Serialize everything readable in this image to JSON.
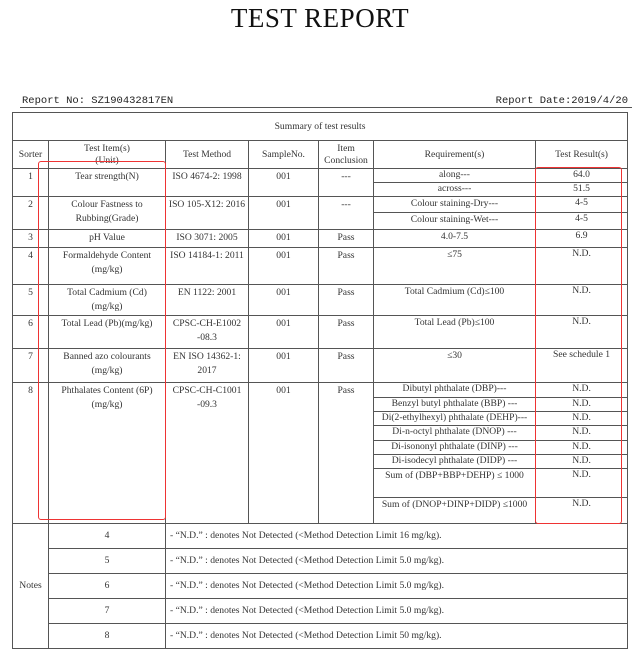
{
  "title": "TEST REPORT",
  "report_no": "Report No: SZ190432817EN",
  "report_date": "Report Date:2019/4/20",
  "summary_title": "Summary of test results",
  "headers": [
    "Sorter",
    "Test Item(s)\n(Unit)",
    "Test Method",
    "SampleNo.",
    "Item Conclusion",
    "Requirement(s)",
    "Test Result(s)"
  ],
  "rows": [
    {
      "sorter": "1",
      "item": "Tear strength(N)",
      "method": "ISO 4674-2: 1998",
      "sample": "001",
      "conclusion": "---",
      "sub": [
        {
          "req": "along---",
          "result": "64.0"
        },
        {
          "req": "across---",
          "result": "51.5"
        }
      ]
    },
    {
      "sorter": "2",
      "item": "Colour Fastness to Rubbing(Grade)",
      "method": "ISO 105-X12: 2016",
      "sample": "001",
      "conclusion": "---",
      "sub": [
        {
          "req": "Colour staining-Dry---",
          "result": "4-5"
        },
        {
          "req": "Colour staining-Wet---",
          "result": "4-5"
        }
      ]
    },
    {
      "sorter": "3",
      "item": "pH Value",
      "method": "ISO 3071:  2005",
      "sample": "001",
      "conclusion": "Pass",
      "sub": [
        {
          "req": "4.0-7.5",
          "result": "6.9"
        }
      ]
    },
    {
      "sorter": "4",
      "item": "Formaldehyde Content (mg/kg)",
      "method": "ISO 14184-1: 2011",
      "sample": "001",
      "conclusion": "Pass",
      "sub": [
        {
          "req": "≤75",
          "result": "N.D."
        }
      ]
    },
    {
      "sorter": "5",
      "item": "Total Cadmium (Cd) (mg/kg)",
      "method": "EN 1122:  2001",
      "sample": "001",
      "conclusion": "Pass",
      "sub": [
        {
          "req": "Total Cadmium (Cd)≤100",
          "result": "N.D."
        }
      ]
    },
    {
      "sorter": "6",
      "item": "Total Lead (Pb)(mg/kg)",
      "method": "CPSC-CH-E1002 -08.3",
      "sample": "001",
      "conclusion": "Pass",
      "sub": [
        {
          "req": "Total Lead (Pb)≤100",
          "result": "N.D."
        }
      ]
    },
    {
      "sorter": "7",
      "item": "Banned azo colourants (mg/kg)",
      "method": "EN ISO 14362-1: 2017",
      "sample": "001",
      "conclusion": "Pass",
      "sub": [
        {
          "req": "≤30",
          "result": "See schedule 1"
        }
      ]
    },
    {
      "sorter": "8",
      "item": "Phthalates Content (6P)  (mg/kg)",
      "method": "CPSC-CH-C1001 -09.3",
      "sample": "001",
      "conclusion": "Pass",
      "sub": [
        {
          "req": "Dibutyl phthalate (DBP)---",
          "result": "N.D."
        },
        {
          "req": "Benzyl butyl phthalate (BBP) ---",
          "result": "N.D."
        },
        {
          "req": "Di(2-ethylhexyl) phthalate (DEHP)---",
          "result": "N.D."
        },
        {
          "req": "Di-n-octyl phthalate (DNOP)  ---",
          "result": "N.D."
        },
        {
          "req": "Di-isononyl phthalate (DINP) ---",
          "result": "N.D."
        },
        {
          "req": "Di-isodecyl phthalate (DIDP) ---",
          "result": "N.D."
        },
        {
          "req": "Sum of  (DBP+BBP+DEHP)  ≤ 1000",
          "result": "N.D."
        },
        {
          "req": "Sum of  (DNOP+DINP+DIDP) ≤1000",
          "result": "N.D."
        }
      ]
    }
  ],
  "notes_label": "Notes",
  "notes": [
    {
      "num": "4",
      "text": "-  “N.D.” : denotes Not Detected (<Method Detection Limit 16 mg/kg)."
    },
    {
      "num": "5",
      "text": "-  “N.D.” : denotes Not Detected (<Method Detection Limit 5.0 mg/kg)."
    },
    {
      "num": "6",
      "text": "-  “N.D.” : denotes Not Detected (<Method Detection Limit 5.0 mg/kg)."
    },
    {
      "num": "7",
      "text": "-  “N.D.” : denotes Not Detected (<Method Detection Limit 5.0 mg/kg)."
    },
    {
      "num": "8",
      "text": "-  “N.D.” : denotes Not Detected (<Method Detection Limit 50 mg/kg)."
    }
  ],
  "highlight_color": "#e33333"
}
